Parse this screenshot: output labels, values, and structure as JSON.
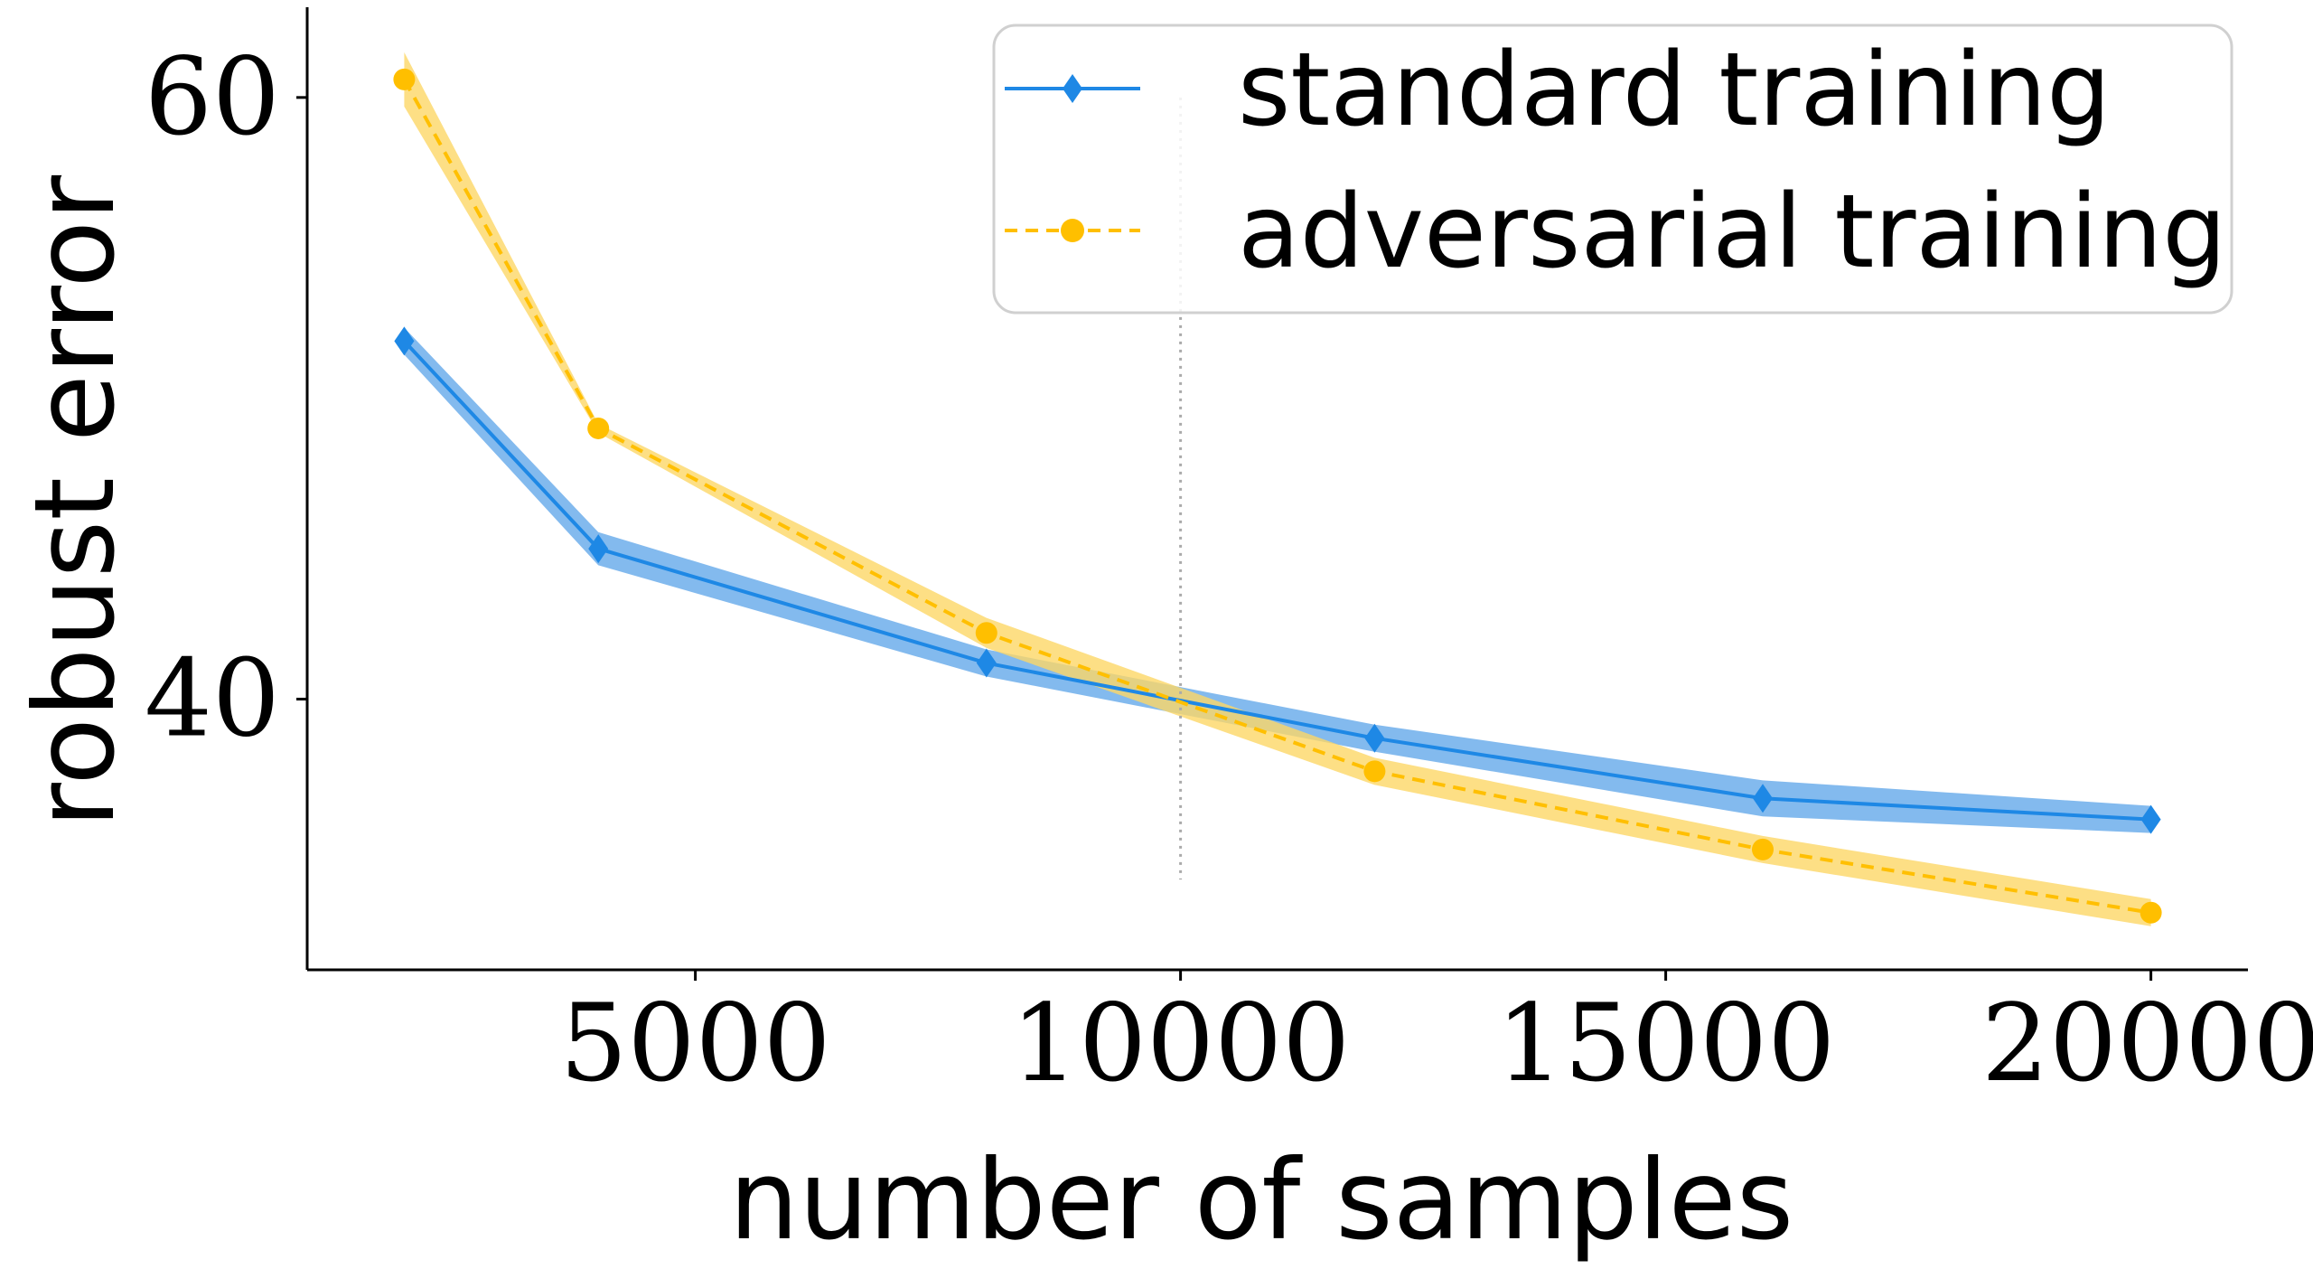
{
  "chart_data": {
    "type": "line",
    "xlabel": "number of samples",
    "ylabel": "robust error",
    "xlim": [
      1000,
      21000
    ],
    "ylim": [
      31.0,
      63.0
    ],
    "xticks": [
      5000,
      10000,
      15000,
      20000
    ],
    "xtick_labels": [
      "5000",
      "10000",
      "15000",
      "20000"
    ],
    "yticks": [
      40,
      60
    ],
    "ytick_labels": [
      "40",
      "60"
    ],
    "grid": false,
    "legend_position": "top-right",
    "vline": {
      "x": 10000,
      "style": "dotted",
      "color": "#aaaaaa"
    },
    "series": [
      {
        "name": "standard training",
        "color": "#1e88e5",
        "band_color": "#64a9ea",
        "line_style": "solid",
        "marker": "diamond",
        "x": [
          2000,
          4000,
          8000,
          12000,
          16000,
          20000
        ],
        "y": [
          51.9,
          45.0,
          41.2,
          38.7,
          36.7,
          36.0
        ],
        "band": [
          0.45,
          0.55,
          0.45,
          0.45,
          0.6,
          0.45
        ]
      },
      {
        "name": "adversarial training",
        "color": "#ffbf00",
        "band_color": "#fdd766",
        "line_style": "dashed",
        "marker": "circle",
        "x": [
          2000,
          4000,
          8000,
          12000,
          16000,
          20000
        ],
        "y": [
          60.6,
          49.0,
          42.2,
          37.6,
          35.0,
          32.9
        ],
        "band": [
          0.9,
          0.15,
          0.5,
          0.45,
          0.45,
          0.45
        ]
      }
    ]
  }
}
